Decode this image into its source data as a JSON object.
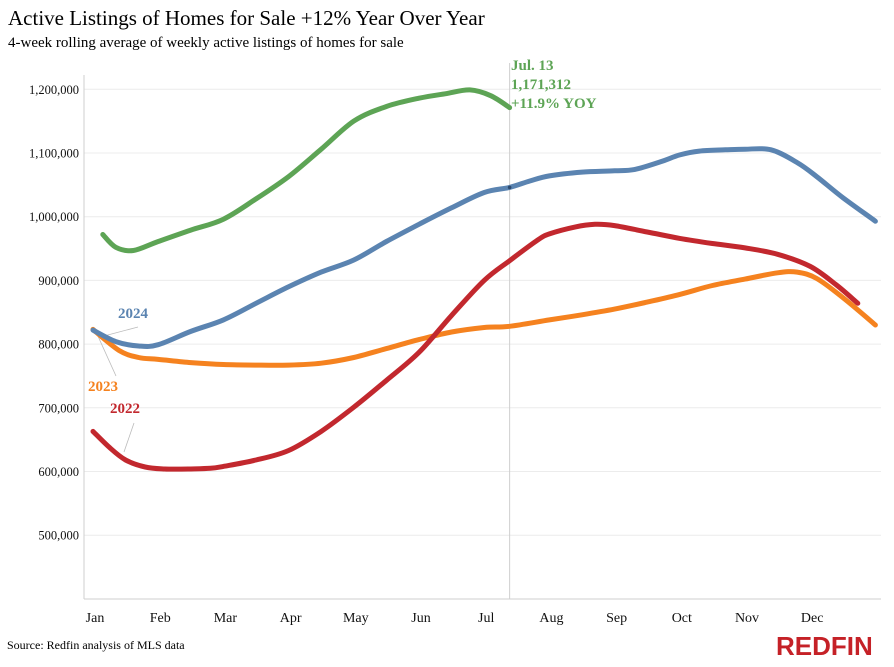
{
  "header": {
    "title": "Active Listings of Homes for Sale +12% Year Over Year",
    "subtitle": "4-week rolling average of weekly active listings of homes for sale"
  },
  "footer": {
    "source": "Source: Redfin analysis of MLS data",
    "brand": "REDFIN"
  },
  "colors": {
    "brand_red": "#C52127",
    "grid": "#ECECEC",
    "axis": "#CFCFCF",
    "marker_line": "#CFCFCF",
    "leader_line": "#BBBBBB",
    "tick_text": "#111111"
  },
  "chart_data": {
    "type": "line",
    "title": "Active Listings of Homes for Sale +12% Year Over Year",
    "subtitle": "4-week rolling average of weekly active listings of homes for sale",
    "xlabel": "",
    "ylabel": "",
    "grid": "horizontal",
    "legend_position": "inline-labels",
    "x_axis": {
      "unit": "month",
      "range_months": [
        0,
        12
      ],
      "tick_labels": [
        "Jan",
        "Feb",
        "Mar",
        "Apr",
        "May",
        "Jun",
        "Jul",
        "Aug",
        "Sep",
        "Oct",
        "Nov",
        "Dec"
      ]
    },
    "y_axis": {
      "range": [
        400000,
        1225000
      ],
      "ticks": [
        {
          "value": 1200000,
          "label": "1,200,000"
        },
        {
          "value": 1100000,
          "label": "1,100,000"
        },
        {
          "value": 1000000,
          "label": "1,000,000"
        },
        {
          "value": 900000,
          "label": "900,000"
        },
        {
          "value": 800000,
          "label": "800,000"
        },
        {
          "value": 700000,
          "label": "700,000"
        },
        {
          "value": 600000,
          "label": "600,000"
        },
        {
          "value": 500000,
          "label": "500,000"
        }
      ]
    },
    "marker": {
      "x_month": 6.39,
      "date_label": "Jul. 13",
      "value": 1171312,
      "value_label": "1,171,312",
      "yoy_label": "+11.9% YOY"
    },
    "series": [
      {
        "name": "2023",
        "color": "#F5821F",
        "label_visible": true,
        "points": [
          [
            0,
            823000
          ],
          [
            0.4,
            790000
          ],
          [
            0.7,
            779000
          ],
          [
            1,
            776000
          ],
          [
            1.5,
            771000
          ],
          [
            2,
            768000
          ],
          [
            2.5,
            767000
          ],
          [
            3,
            767000
          ],
          [
            3.5,
            770000
          ],
          [
            4,
            779000
          ],
          [
            4.5,
            793000
          ],
          [
            5,
            807000
          ],
          [
            5.5,
            819000
          ],
          [
            6,
            826000
          ],
          [
            6.39,
            828000
          ],
          [
            7,
            838000
          ],
          [
            7.5,
            846000
          ],
          [
            8,
            855000
          ],
          [
            8.5,
            866000
          ],
          [
            9,
            878000
          ],
          [
            9.5,
            892000
          ],
          [
            10,
            902000
          ],
          [
            10.5,
            912000
          ],
          [
            10.8,
            913000
          ],
          [
            11.1,
            903000
          ],
          [
            11.5,
            873000
          ],
          [
            12,
            830000
          ]
        ]
      },
      {
        "name": "2022",
        "color": "#C2282E",
        "label_visible": true,
        "points": [
          [
            0,
            663000
          ],
          [
            0.25,
            638000
          ],
          [
            0.5,
            618000
          ],
          [
            0.8,
            607000
          ],
          [
            1.1,
            604000
          ],
          [
            1.5,
            604000
          ],
          [
            1.8,
            605000
          ],
          [
            2,
            608000
          ],
          [
            2.5,
            618000
          ],
          [
            3,
            633000
          ],
          [
            3.5,
            663000
          ],
          [
            4,
            701000
          ],
          [
            4.5,
            743000
          ],
          [
            5,
            787000
          ],
          [
            5.5,
            845000
          ],
          [
            6,
            900000
          ],
          [
            6.39,
            931000
          ],
          [
            6.8,
            962000
          ],
          [
            7,
            973000
          ],
          [
            7.4,
            984000
          ],
          [
            7.7,
            988000
          ],
          [
            8,
            986000
          ],
          [
            8.5,
            976000
          ],
          [
            9,
            966000
          ],
          [
            9.5,
            958000
          ],
          [
            10,
            951000
          ],
          [
            10.5,
            941000
          ],
          [
            11,
            922000
          ],
          [
            11.4,
            893000
          ],
          [
            11.73,
            864000
          ]
        ]
      },
      {
        "name": "2024",
        "color": "#5B84B1",
        "label_visible": true,
        "points": [
          [
            0,
            822000
          ],
          [
            0.35,
            804000
          ],
          [
            0.7,
            797000
          ],
          [
            1,
            799000
          ],
          [
            1.5,
            820000
          ],
          [
            2,
            838000
          ],
          [
            2.5,
            864000
          ],
          [
            3,
            890000
          ],
          [
            3.5,
            913000
          ],
          [
            4,
            932000
          ],
          [
            4.5,
            961000
          ],
          [
            5,
            988000
          ],
          [
            5.5,
            1014000
          ],
          [
            6,
            1038000
          ],
          [
            6.39,
            1046000
          ],
          [
            6.7,
            1056000
          ],
          [
            7,
            1064000
          ],
          [
            7.5,
            1070000
          ],
          [
            8,
            1072000
          ],
          [
            8.3,
            1074000
          ],
          [
            8.7,
            1086000
          ],
          [
            9,
            1097000
          ],
          [
            9.3,
            1103000
          ],
          [
            9.7,
            1105000
          ],
          [
            10,
            1106000
          ],
          [
            10.4,
            1105000
          ],
          [
            10.8,
            1085000
          ],
          [
            11.1,
            1063000
          ],
          [
            11.5,
            1030000
          ],
          [
            12,
            993000
          ]
        ]
      },
      {
        "name": "current-year",
        "color": "#5DA455",
        "label_visible": false,
        "points": [
          [
            0.15,
            972000
          ],
          [
            0.35,
            952000
          ],
          [
            0.62,
            947000
          ],
          [
            1,
            961000
          ],
          [
            1.5,
            979000
          ],
          [
            2,
            996000
          ],
          [
            2.5,
            1028000
          ],
          [
            3,
            1063000
          ],
          [
            3.5,
            1106000
          ],
          [
            4,
            1150000
          ],
          [
            4.5,
            1173000
          ],
          [
            5,
            1186000
          ],
          [
            5.4,
            1193000
          ],
          [
            5.78,
            1199000
          ],
          [
            6.1,
            1190000
          ],
          [
            6.39,
            1171312
          ]
        ]
      }
    ]
  }
}
